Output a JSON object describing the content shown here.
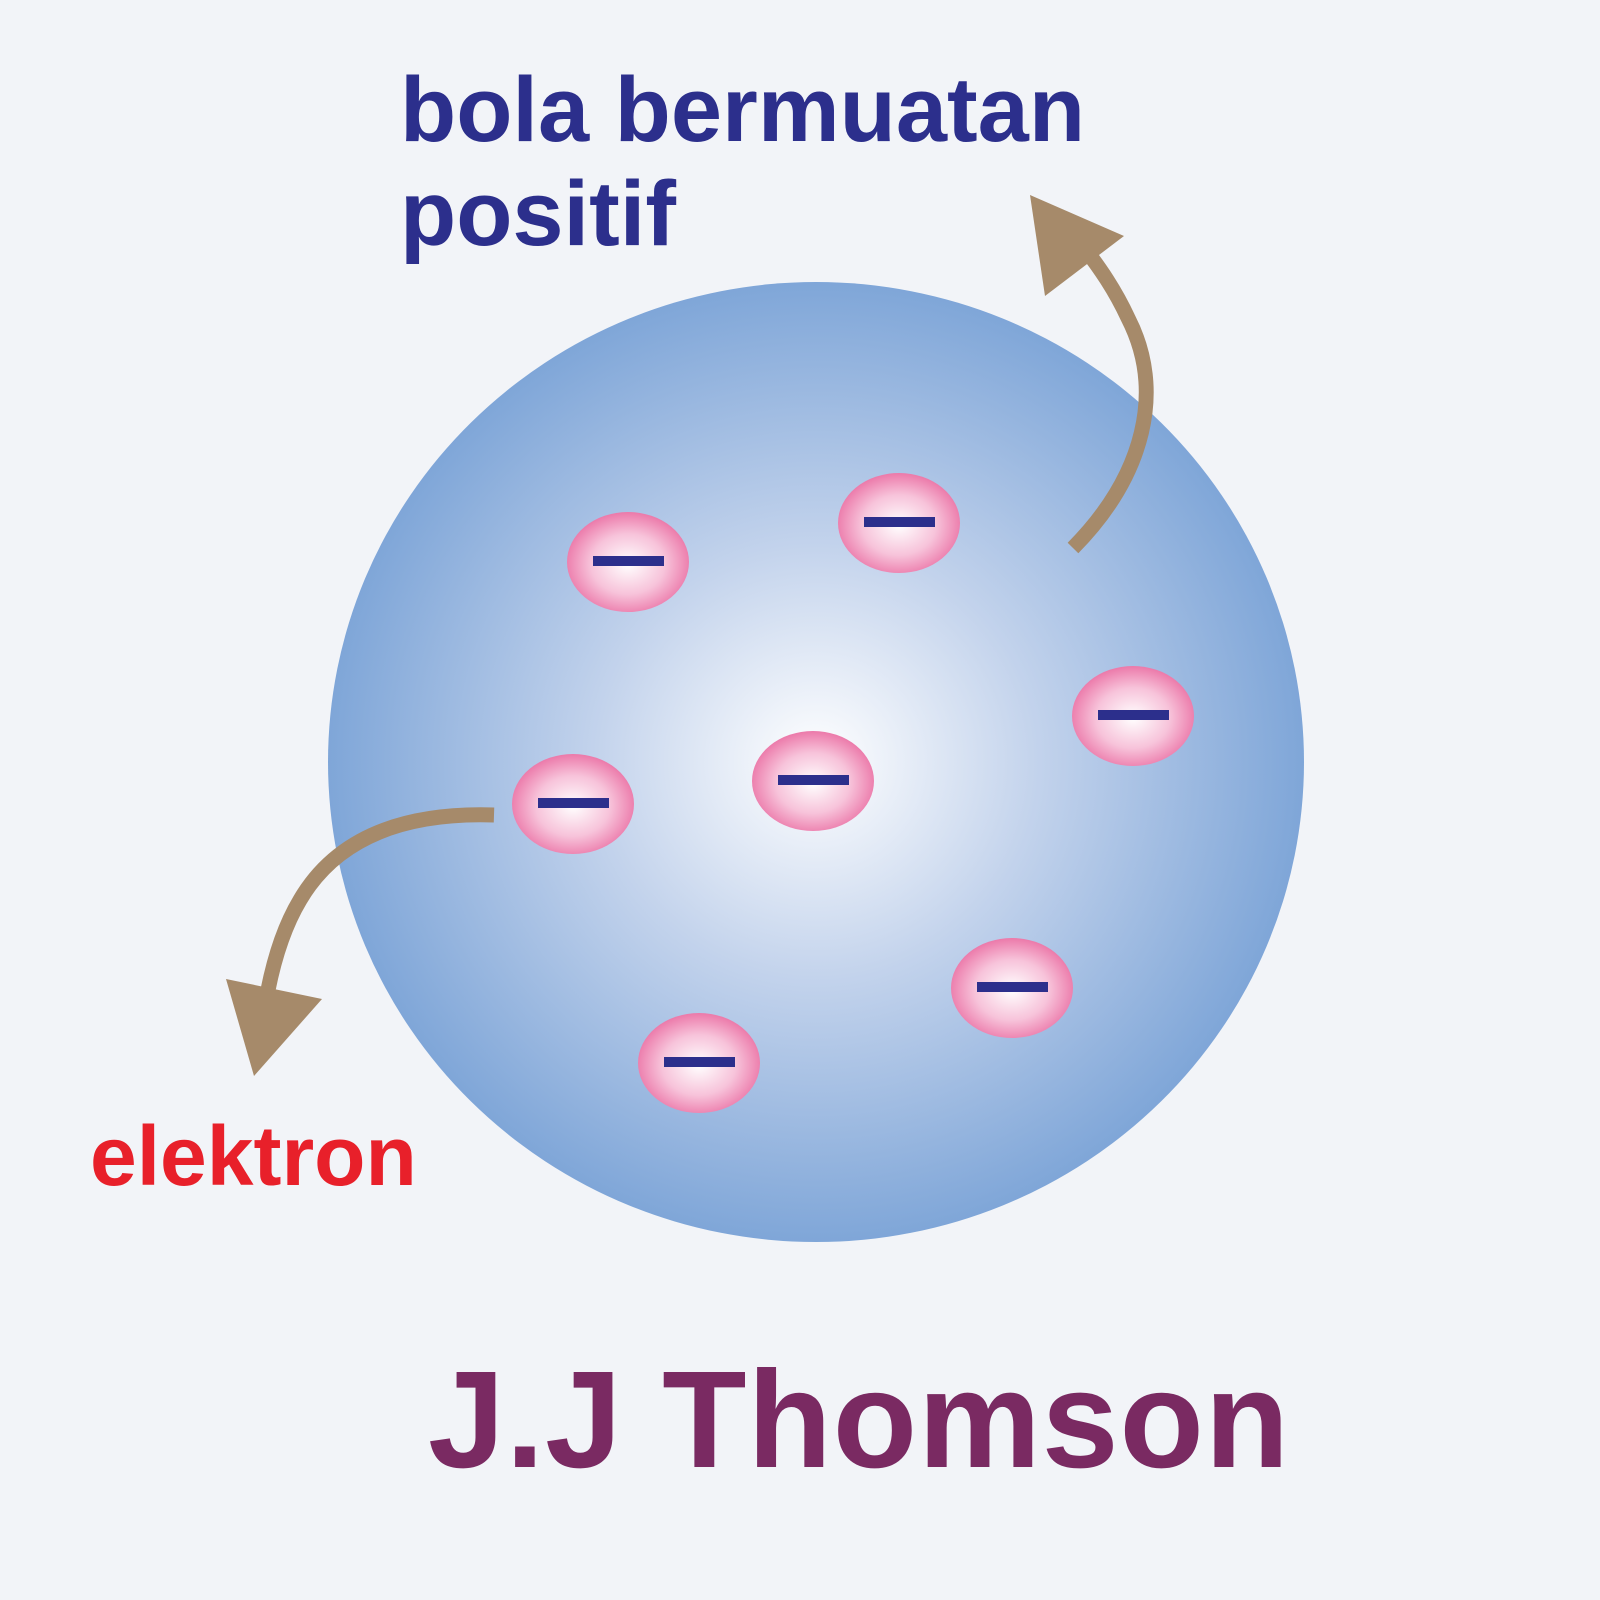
{
  "labels": {
    "sphere_line1": "bola bermuatan",
    "sphere_line2": "positif",
    "electron": "elektron",
    "title": "J.J Thomson"
  },
  "colors": {
    "background": "#f2f4f8",
    "sphere_center": "#ffffff",
    "sphere_edge": "#7fa6d8",
    "electron_center": "#ffffff",
    "electron_edge": "#ea6fa3",
    "minus_sign": "#2c2f8c",
    "arrow": "#a68a6a",
    "sphere_label": "#2c2f8c",
    "electron_label": "#e8202a",
    "title": "#7a2a62"
  },
  "electron_count": 7,
  "electron_symbol": "minus-sign"
}
